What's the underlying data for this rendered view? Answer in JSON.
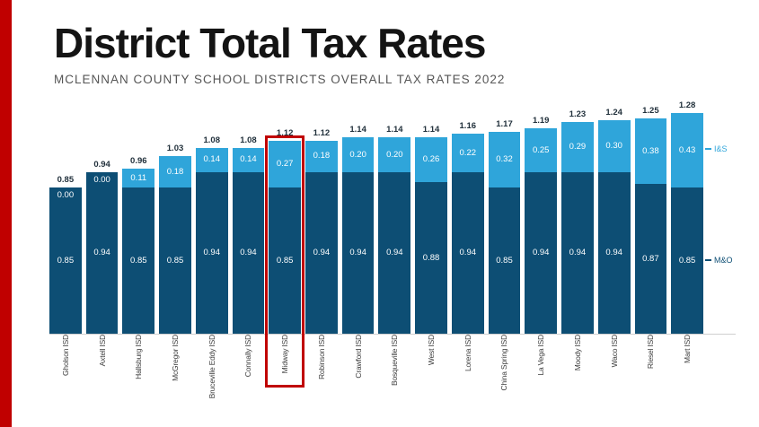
{
  "slide": {
    "title": "District Total Tax Rates",
    "subtitle": "MCLENNAN COUNTY SCHOOL DISTRICTS OVERALL TAX RATES 2022",
    "accent_color": "#c00000"
  },
  "chart_data": {
    "type": "bar",
    "stacked": true,
    "title": "District Total Tax Rates",
    "categories": [
      "Gholson ISD",
      "Axtell ISD",
      "Hallsburg ISD",
      "McGregor ISD",
      "Bruceville Eddy ISD",
      "Connally ISD",
      "Midway ISD",
      "Robinson ISD",
      "Crawford ISD",
      "Bosqueville ISD",
      "West ISD",
      "Lorena ISD",
      "China Spring ISD",
      "La Vega ISD",
      "Moody ISD",
      "Waco ISD",
      "Riesel ISD",
      "Mart ISD"
    ],
    "series": [
      {
        "name": "M&O",
        "color": "#0d4e74",
        "values": [
          0.85,
          0.94,
          0.85,
          0.85,
          0.94,
          0.94,
          0.85,
          0.94,
          0.94,
          0.94,
          0.88,
          0.94,
          0.85,
          0.94,
          0.94,
          0.94,
          0.87,
          0.85
        ]
      },
      {
        "name": "I&S",
        "color": "#2fa5da",
        "values": [
          0.0,
          0.0,
          0.11,
          0.18,
          0.14,
          0.14,
          0.27,
          0.18,
          0.2,
          0.2,
          0.26,
          0.22,
          0.32,
          0.25,
          0.29,
          0.3,
          0.38,
          0.43
        ]
      }
    ],
    "totals": [
      0.85,
      0.94,
      0.96,
      1.03,
      1.08,
      1.08,
      1.12,
      1.12,
      1.14,
      1.14,
      1.14,
      1.16,
      1.17,
      1.19,
      1.23,
      1.24,
      1.25,
      1.28
    ],
    "ylim": [
      0,
      1.3
    ],
    "grid": false,
    "legend": {
      "position": "right",
      "items": [
        "I&S",
        "M&O"
      ]
    },
    "highlight": {
      "category": "Midway ISD",
      "color": "#c00000"
    }
  }
}
